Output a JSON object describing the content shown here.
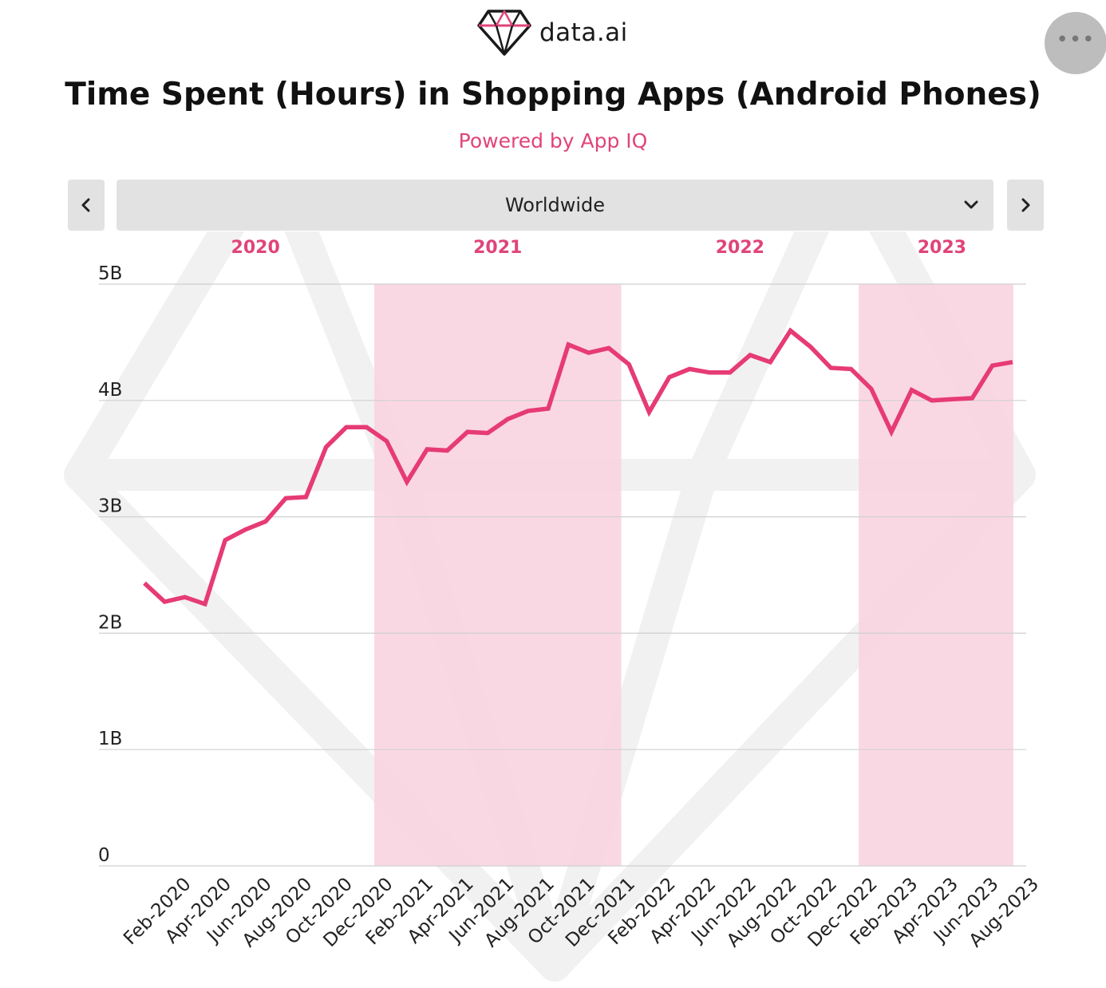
{
  "brand": {
    "name": "data.ai",
    "icon": "diamond-icon"
  },
  "menu": {
    "icon": "more-dots-icon",
    "label": "•••"
  },
  "header": {
    "title": "Time Spent (Hours) in Shopping Apps (Android Phones)",
    "subtitle": "Powered by App IQ"
  },
  "selector": {
    "value": "Worldwide",
    "prev_icon": "chevron-left-icon",
    "next_icon": "chevron-right-icon",
    "dropdown_icon": "chevron-down-icon"
  },
  "colors": {
    "accent": "#e63b74",
    "band": "#f9d3df",
    "grid": "#d0d0d0"
  },
  "chart_data": {
    "type": "line",
    "title": "Time Spent (Hours) in Shopping Apps (Android Phones)",
    "ylim": [
      0,
      5
    ],
    "yticks": [
      {
        "v": 0,
        "label": "0"
      },
      {
        "v": 1,
        "label": "1B"
      },
      {
        "v": 2,
        "label": "2B"
      },
      {
        "v": 3,
        "label": "3B"
      },
      {
        "v": 4,
        "label": "4B"
      },
      {
        "v": 5,
        "label": "5B"
      }
    ],
    "x": [
      "Jan-2020",
      "Feb-2020",
      "Mar-2020",
      "Apr-2020",
      "May-2020",
      "Jun-2020",
      "Jul-2020",
      "Aug-2020",
      "Sep-2020",
      "Oct-2020",
      "Nov-2020",
      "Dec-2020",
      "Jan-2021",
      "Feb-2021",
      "Mar-2021",
      "Apr-2021",
      "May-2021",
      "Jun-2021",
      "Jul-2021",
      "Aug-2021",
      "Sep-2021",
      "Oct-2021",
      "Nov-2021",
      "Dec-2021",
      "Jan-2022",
      "Feb-2022",
      "Mar-2022",
      "Apr-2022",
      "May-2022",
      "Jun-2022",
      "Jul-2022",
      "Aug-2022",
      "Sep-2022",
      "Oct-2022",
      "Nov-2022",
      "Dec-2022",
      "Jan-2023",
      "Feb-2023",
      "Mar-2023",
      "Apr-2023",
      "May-2023",
      "Jun-2023",
      "Jul-2023",
      "Aug-2023"
    ],
    "xtick_labels": [
      "Feb-2020",
      "Apr-2020",
      "Jun-2020",
      "Aug-2020",
      "Oct-2020",
      "Dec-2020",
      "Feb-2021",
      "Apr-2021",
      "Jun-2021",
      "Aug-2021",
      "Oct-2021",
      "Dec-2021",
      "Feb-2022",
      "Apr-2022",
      "Jun-2022",
      "Aug-2022",
      "Oct-2022",
      "Dec-2022",
      "Feb-2023",
      "Apr-2023",
      "Jun-2023",
      "Aug-2023"
    ],
    "series": [
      {
        "values": [
          2.43,
          2.27,
          2.31,
          2.25,
          2.8,
          2.89,
          2.96,
          3.16,
          3.17,
          3.6,
          3.77,
          3.77,
          3.65,
          3.3,
          3.58,
          3.57,
          3.73,
          3.72,
          3.84,
          3.91,
          3.93,
          4.48,
          4.41,
          4.45,
          4.31,
          3.9,
          4.2,
          4.27,
          4.24,
          4.24,
          4.39,
          4.33,
          4.6,
          4.46,
          4.28,
          4.27,
          4.1,
          3.73,
          4.09,
          4.0,
          4.01,
          4.02,
          4.3,
          4.33
        ]
      }
    ],
    "year_labels": [
      {
        "label": "2020",
        "from": "Jan-2020",
        "to": "Dec-2020"
      },
      {
        "label": "2021",
        "from": "Jan-2021",
        "to": "Dec-2021"
      },
      {
        "label": "2022",
        "from": "Jan-2022",
        "to": "Dec-2022"
      },
      {
        "label": "2023",
        "from": "Jan-2023",
        "to": "Aug-2023"
      }
    ],
    "shaded_years": [
      "2021",
      "2023"
    ],
    "grid": true
  }
}
